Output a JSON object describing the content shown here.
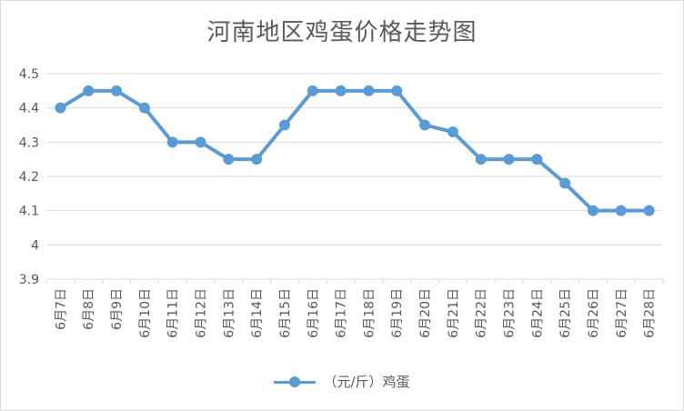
{
  "chart_data": {
    "type": "line",
    "title": "河南地区鸡蛋价格走势图",
    "categories": [
      "6月7日",
      "6月8日",
      "6月9日",
      "6月10日",
      "6月11日",
      "6月12日",
      "6月13日",
      "6月14日",
      "6月15日",
      "6月16日",
      "6月17日",
      "6月18日",
      "6月19日",
      "6月20日",
      "6月21日",
      "6月22日",
      "6月23日",
      "6月24日",
      "6月25日",
      "6月26日",
      "6月27日",
      "6月28日"
    ],
    "series": [
      {
        "name": "（元/斤）鸡蛋",
        "values": [
          4.4,
          4.45,
          4.45,
          4.4,
          4.3,
          4.3,
          4.25,
          4.25,
          4.35,
          4.45,
          4.45,
          4.45,
          4.45,
          4.35,
          4.33,
          4.25,
          4.25,
          4.25,
          4.18,
          4.1,
          4.1,
          4.1
        ]
      }
    ],
    "yticks": [
      "3.9",
      "4",
      "4.1",
      "4.2",
      "4.3",
      "4.4",
      "4.5"
    ],
    "ylim": [
      3.9,
      4.5
    ],
    "grid": true,
    "legend_position": "bottom",
    "color": "#5b9bd5"
  }
}
